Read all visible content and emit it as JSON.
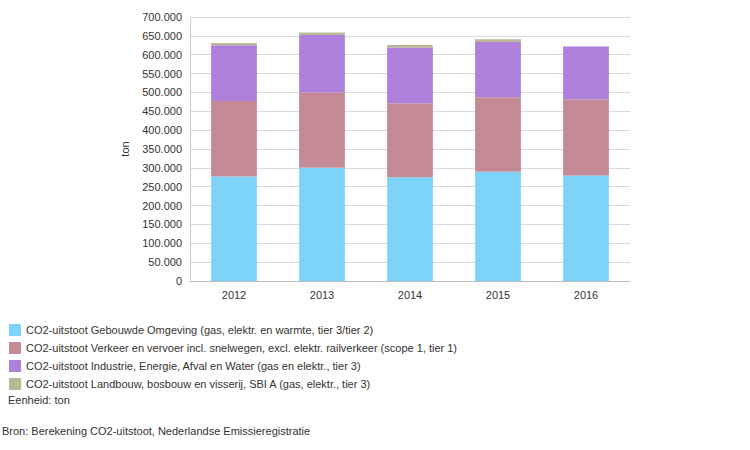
{
  "chart_data": {
    "type": "bar",
    "stacked": true,
    "grid": true,
    "legend": "bottom-left",
    "y_label": "ton",
    "categories": [
      "2012",
      "2013",
      "2014",
      "2015",
      "2016"
    ],
    "series": [
      {
        "name": "CO2-uitstoot Gebouwde Omgeving (gas, elektr. en warmte, tier 3/tier 2)",
        "color": "#7dd3fa",
        "values": [
          277000,
          300000,
          275000,
          290000,
          280000
        ]
      },
      {
        "name": "CO2-uitstoot Verkeer en vervoer incl. snelwegen, excl. elektr. railverkeer (scope 1, tier 1)",
        "color": "#c48b96",
        "values": [
          200000,
          200000,
          196000,
          197000,
          202000
        ]
      },
      {
        "name": "CO2-uitstoot Industrie, Energie, Afval en Water (gas en elektr., tier 3)",
        "color": "#ad80dc",
        "values": [
          148000,
          152000,
          148000,
          147000,
          140000
        ]
      },
      {
        "name": "CO2-uitstoot Landbouw, bosbouw en visserij, SBI A (gas, elektr., tier 3)",
        "color": "#b9b996",
        "values": [
          6000,
          7000,
          7000,
          7000,
          null
        ]
      }
    ],
    "ylim": [
      0,
      700000
    ],
    "yticks": [
      0,
      {
        "value": 50000,
        "label": "50.000"
      },
      {
        "value": 100000,
        "label": "100.000"
      },
      {
        "value": 150000,
        "label": "150.000"
      },
      {
        "value": 200000,
        "label": "200.000"
      },
      {
        "value": 250000,
        "label": "250.000"
      },
      {
        "value": 300000,
        "label": "300.000"
      },
      {
        "value": 350000,
        "label": "350.000"
      },
      {
        "value": 400000,
        "label": "400.000"
      },
      {
        "value": 450000,
        "label": "450.000"
      },
      {
        "value": 500000,
        "label": "500.000"
      },
      {
        "value": 550000,
        "label": "550.000"
      },
      {
        "value": 600000,
        "label": "600.000"
      },
      {
        "value": 650000,
        "label": "650.000"
      },
      {
        "value": 700000,
        "label": "700.000"
      }
    ],
    "annotations": [
      "Eenheid: ton",
      "Bron: Berekening CO2-uitstoot, Nederlandse Emissieregistratie"
    ]
  }
}
